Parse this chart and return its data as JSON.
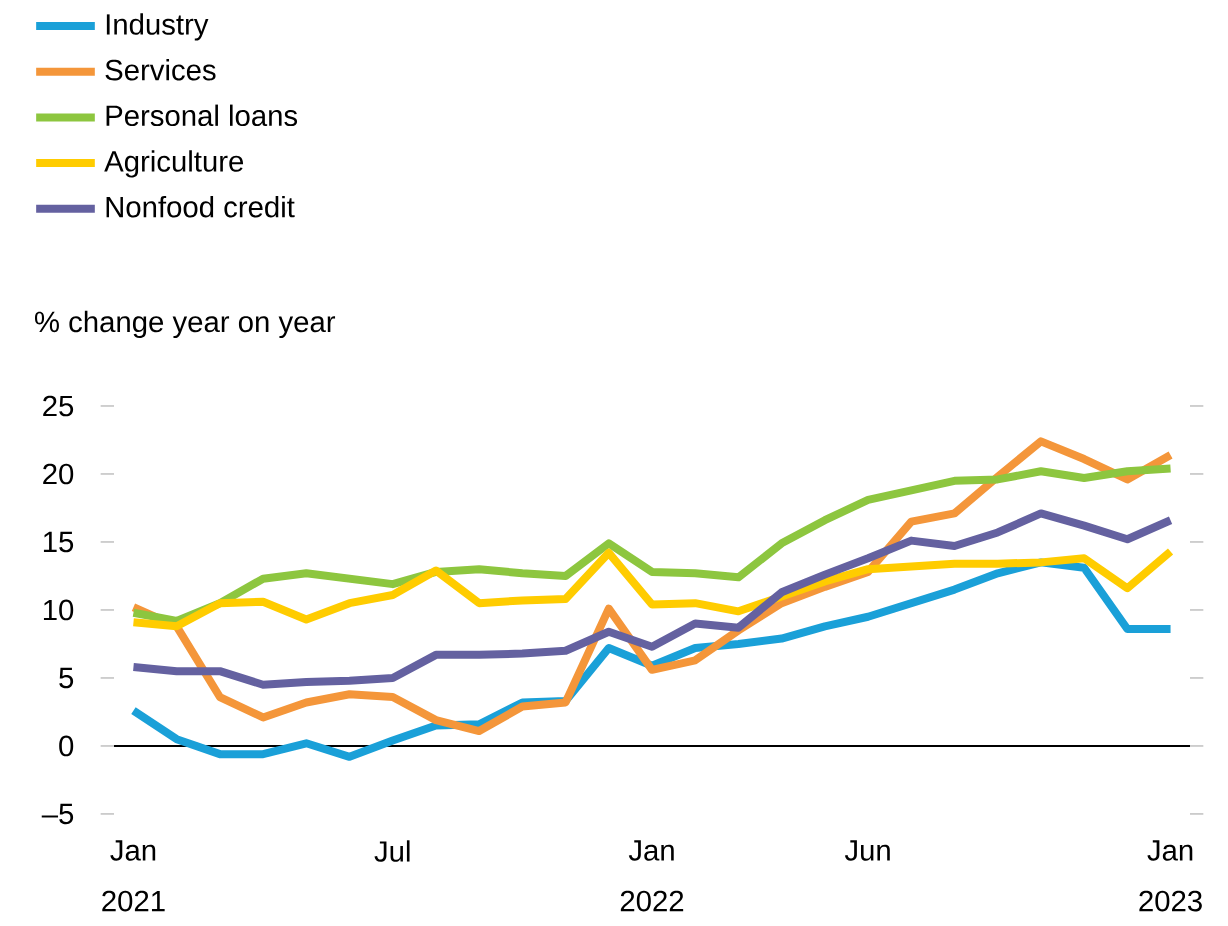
{
  "chart_data": {
    "type": "line",
    "ylabel": "% change year on year",
    "x": [
      "2021-01",
      "2021-02",
      "2021-03",
      "2021-04",
      "2021-05",
      "2021-06",
      "2021-07",
      "2021-08",
      "2021-09",
      "2021-10",
      "2021-11",
      "2021-12",
      "2022-01",
      "2022-02",
      "2022-03",
      "2022-04",
      "2022-05",
      "2022-06",
      "2022-07",
      "2022-08",
      "2022-09",
      "2022-10",
      "2022-11",
      "2022-12",
      "2023-01"
    ],
    "series": [
      {
        "name": "Industry",
        "color": "#1aa0d8",
        "values": [
          2.6,
          0.5,
          -0.6,
          -0.6,
          0.2,
          -0.8,
          0.4,
          1.5,
          1.6,
          3.2,
          3.3,
          7.2,
          5.9,
          7.2,
          7.5,
          7.9,
          8.8,
          9.5,
          10.5,
          11.5,
          12.7,
          13.5,
          13.1,
          8.6,
          8.6
        ]
      },
      {
        "name": "Services",
        "color": "#f4963a",
        "values": [
          10.2,
          8.8,
          3.6,
          2.1,
          3.2,
          3.8,
          3.6,
          1.9,
          1.1,
          2.9,
          3.2,
          10.1,
          5.6,
          6.3,
          8.5,
          10.5,
          11.7,
          12.8,
          16.5,
          17.1,
          19.8,
          22.4,
          21.1,
          19.6,
          21.4
        ]
      },
      {
        "name": "Personal loans",
        "color": "#8dc63f",
        "values": [
          9.8,
          9.2,
          10.5,
          12.3,
          12.7,
          12.3,
          11.9,
          12.8,
          13.0,
          12.7,
          12.5,
          14.9,
          12.8,
          12.7,
          12.4,
          14.9,
          16.6,
          18.1,
          18.8,
          19.5,
          19.6,
          20.2,
          19.7,
          20.2,
          20.4
        ]
      },
      {
        "name": "Agriculture",
        "color": "#ffcc00",
        "values": [
          9.1,
          8.8,
          10.5,
          10.6,
          9.3,
          10.5,
          11.1,
          12.9,
          10.5,
          10.7,
          10.8,
          14.2,
          10.4,
          10.5,
          9.9,
          11.0,
          12.1,
          13.0,
          13.2,
          13.4,
          13.4,
          13.5,
          13.8,
          11.6,
          14.3
        ]
      },
      {
        "name": "Nonfood credit",
        "color": "#6461a0",
        "values": [
          5.8,
          5.5,
          5.5,
          4.5,
          4.7,
          4.8,
          5.0,
          6.7,
          6.7,
          6.8,
          7.0,
          8.4,
          7.3,
          9.0,
          8.7,
          11.3,
          12.6,
          13.8,
          15.1,
          14.7,
          15.7,
          17.1,
          16.2,
          15.2,
          16.6
        ]
      }
    ],
    "xlim": [
      "2021-01",
      "2023-01"
    ],
    "xticks": [
      {
        "value": "2021-01",
        "label": "Jan 2021"
      },
      {
        "value": "2021-07",
        "label": "Jul"
      },
      {
        "value": "2022-01",
        "label": "Jan 2022"
      },
      {
        "value": "2022-06",
        "label": "Jun"
      },
      {
        "value": "2023-01",
        "label": "Jan 2023"
      }
    ],
    "ylim": [
      -5,
      25
    ],
    "yticks": [
      {
        "value": -5,
        "label": "–5"
      },
      0,
      5,
      10,
      15,
      20,
      25
    ],
    "ref_lines": [
      {
        "axis": "y",
        "value": 0,
        "color": "#000000"
      }
    ],
    "legend": "top left",
    "marker": "none",
    "line_style": "solid",
    "grid": false
  }
}
